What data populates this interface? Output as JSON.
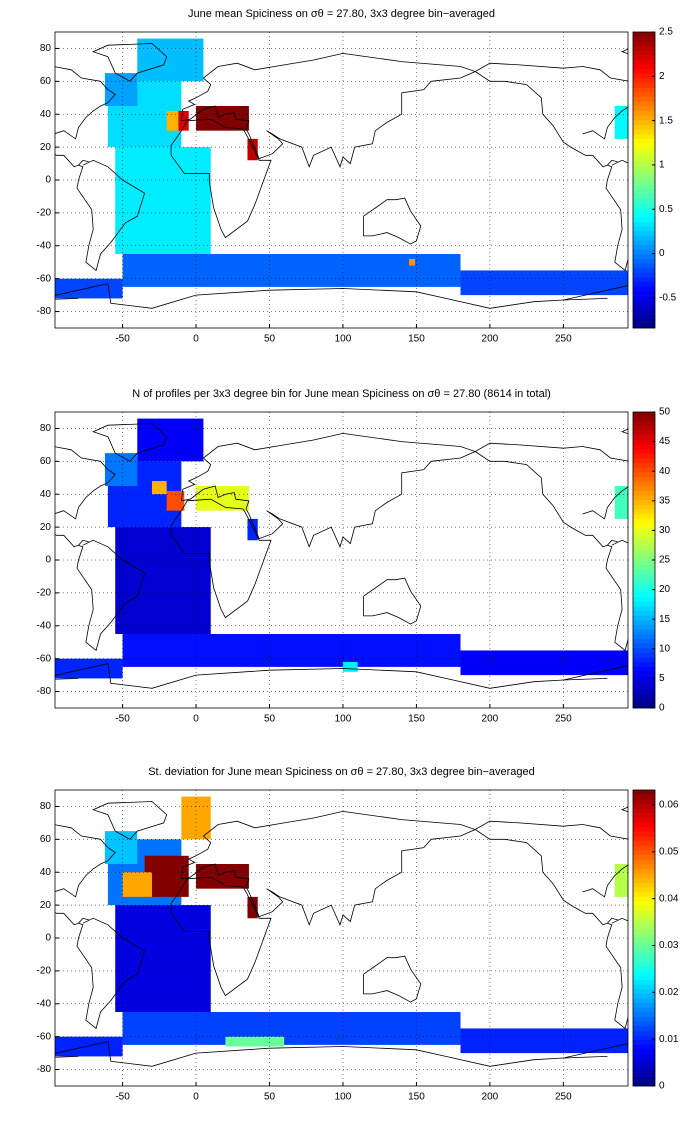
{
  "chart_data": [
    {
      "type": "heatmap",
      "title": "June mean Spiciness on σθ = 27.80, 3x3 degree bin−averaged",
      "xlim": [
        -96,
        294
      ],
      "ylim": [
        -90,
        90
      ],
      "xticks": [
        -50,
        0,
        50,
        100,
        150,
        200,
        250
      ],
      "yticks": [
        -80,
        -60,
        -40,
        -20,
        0,
        20,
        40,
        60,
        80
      ],
      "clim": [
        -0.84,
        2.5
      ],
      "cticks": [
        -0.5,
        0,
        0.5,
        1,
        1.5,
        2,
        2.5
      ],
      "grid": true,
      "colormap": "jet",
      "lon0": [
        -60,
        -40,
        -62,
        -20,
        0,
        35,
        -55,
        -50,
        180,
        -96,
        285,
        145,
        -12
      ],
      "lon1": [
        -10,
        5,
        -40,
        -8,
        36,
        42,
        10,
        180,
        294,
        -50,
        294,
        149,
        -5
      ],
      "lat0": [
        20,
        60,
        45,
        30,
        30,
        12,
        -45,
        -65,
        -70,
        -72,
        25,
        -52,
        30
      ],
      "lat1": [
        60,
        86,
        65,
        42,
        45,
        25,
        20,
        -45,
        -55,
        -60,
        45,
        -48,
        42
      ],
      "values": [
        0.3,
        0.2,
        0.1,
        1.5,
        2.5,
        2.3,
        0.35,
        -0.1,
        -0.2,
        -0.2,
        0.4,
        1.6,
        2.2
      ]
    },
    {
      "type": "heatmap",
      "title": "N of profiles per 3x3 degree bin for June mean Spiciness on σθ = 27.80 (8614 in total)",
      "xlim": [
        -96,
        294
      ],
      "ylim": [
        -90,
        90
      ],
      "xticks": [
        -50,
        0,
        50,
        100,
        150,
        200,
        250
      ],
      "yticks": [
        -80,
        -60,
        -40,
        -20,
        0,
        20,
        40,
        60,
        80
      ],
      "clim": [
        0,
        50
      ],
      "cticks": [
        0,
        5,
        10,
        15,
        20,
        25,
        30,
        35,
        40,
        45,
        50
      ],
      "grid": true,
      "colormap": "jet",
      "lon0": [
        -60,
        -40,
        -62,
        -20,
        0,
        35,
        -55,
        -50,
        180,
        -96,
        285,
        100,
        -30
      ],
      "lon1": [
        -10,
        5,
        -40,
        -8,
        36,
        42,
        10,
        180,
        294,
        -50,
        294,
        110,
        -20
      ],
      "lat0": [
        20,
        60,
        45,
        30,
        30,
        12,
        -45,
        -65,
        -70,
        -72,
        25,
        -68,
        40
      ],
      "lat1": [
        60,
        86,
        65,
        42,
        45,
        25,
        20,
        -45,
        -55,
        -60,
        45,
        -62,
        48
      ],
      "values": [
        8,
        6,
        12,
        40,
        30,
        8,
        4,
        7,
        6,
        8,
        22,
        18,
        35
      ]
    },
    {
      "type": "heatmap",
      "title": "St. deviation for June mean Spiciness on σθ = 27.80, 3x3 degree bin−averaged",
      "xlim": [
        -96,
        294
      ],
      "ylim": [
        -90,
        90
      ],
      "xticks": [
        -50,
        0,
        50,
        100,
        150,
        200,
        250
      ],
      "yticks": [
        -80,
        -60,
        -40,
        -20,
        0,
        20,
        40,
        60,
        80
      ],
      "clim": [
        0,
        0.0632
      ],
      "cticks": [
        0,
        0.01,
        0.02,
        0.03,
        0.04,
        0.05,
        0.06
      ],
      "grid": true,
      "colormap": "jet",
      "lon0": [
        -60,
        -10,
        -62,
        -35,
        0,
        35,
        -55,
        -50,
        180,
        -96,
        285,
        20,
        -50
      ],
      "lon1": [
        -10,
        10,
        -40,
        -5,
        36,
        42,
        10,
        180,
        294,
        -50,
        294,
        60,
        -30
      ],
      "lat0": [
        20,
        60,
        45,
        25,
        30,
        12,
        -45,
        -65,
        -70,
        -72,
        25,
        -66,
        25
      ],
      "lat1": [
        60,
        86,
        65,
        50,
        45,
        25,
        20,
        -45,
        -55,
        -60,
        45,
        -60,
        40
      ],
      "values": [
        0.015,
        0.045,
        0.02,
        0.063,
        0.063,
        0.063,
        0.006,
        0.012,
        0.01,
        0.01,
        0.035,
        0.03,
        0.045
      ]
    }
  ]
}
